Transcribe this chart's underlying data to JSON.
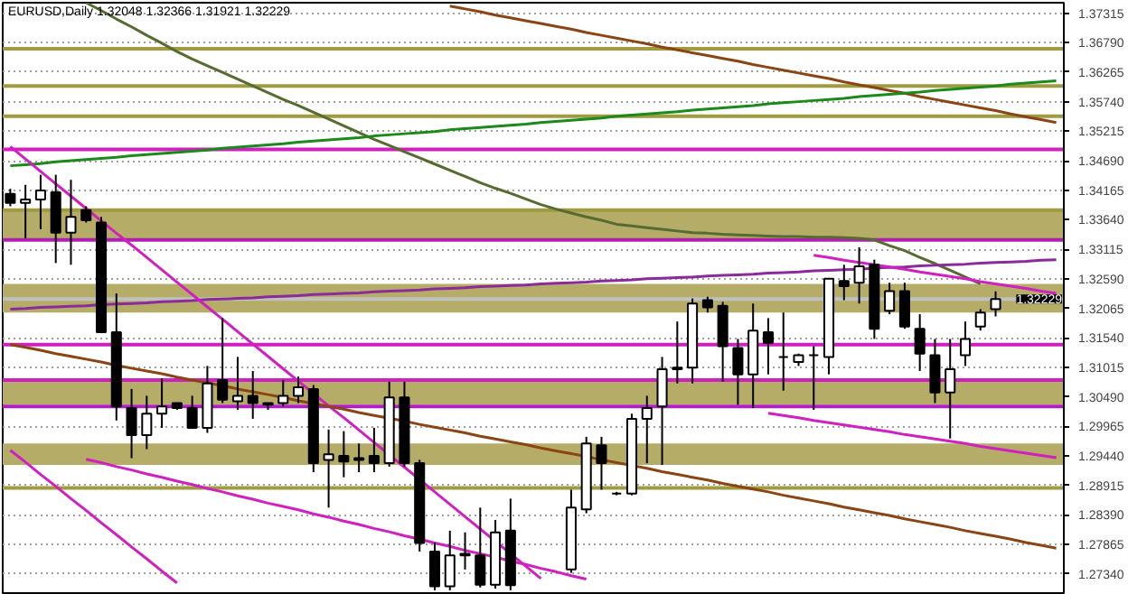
{
  "chart_data": {
    "type": "candlestick",
    "title": "EURUSD,Daily  1.32048 1.32366 1.31921 1.32229",
    "categories": [
      null,
      null,
      null,
      null,
      null,
      null,
      null,
      null,
      null,
      null,
      null,
      null,
      null,
      null,
      null,
      null,
      null,
      null,
      null,
      null,
      null,
      null,
      null,
      null,
      null,
      null,
      null,
      null,
      null,
      null,
      null,
      null,
      null,
      null,
      null,
      null,
      null,
      null,
      null,
      null,
      null,
      null,
      null,
      null,
      null,
      null,
      null,
      null,
      null,
      null,
      null,
      null,
      null,
      null,
      null,
      null,
      null,
      null,
      null,
      null,
      null,
      null,
      null,
      null,
      null,
      null,
      null,
      null,
      null,
      null
    ],
    "ohlc": [
      [
        1.341,
        1.3419,
        1.3388,
        1.3394
      ],
      [
        1.3394,
        1.3426,
        1.3331,
        1.34
      ],
      [
        1.34,
        1.3444,
        1.3347,
        1.3416
      ],
      [
        1.3413,
        1.3444,
        1.3287,
        1.3341
      ],
      [
        1.3341,
        1.3435,
        1.3284,
        1.3369
      ],
      [
        1.3381,
        1.3388,
        1.3359,
        1.3363
      ],
      [
        1.3359,
        1.3369,
        1.3164,
        1.3164
      ],
      [
        1.3164,
        1.3233,
        1.3007,
        1.3032
      ],
      [
        1.3029,
        1.3063,
        1.294,
        1.2981
      ],
      [
        1.2981,
        1.3051,
        1.2956,
        1.3019
      ],
      [
        1.3019,
        1.3082,
        1.2994,
        1.3032
      ],
      [
        1.3038,
        1.3038,
        1.3026,
        1.3029
      ],
      [
        1.3029,
        1.3051,
        1.2994,
        1.2994
      ],
      [
        1.2994,
        1.3104,
        1.2985,
        1.3073
      ],
      [
        1.3079,
        1.3189,
        1.3038,
        1.3044
      ],
      [
        1.3041,
        1.312,
        1.3026,
        1.3051
      ],
      [
        1.3051,
        1.3095,
        1.301,
        1.3038
      ],
      [
        1.3038,
        1.3038,
        1.3026,
        1.3035
      ],
      [
        1.3038,
        1.3079,
        1.3032,
        1.3051
      ],
      [
        1.3051,
        1.3085,
        1.3038,
        1.3066
      ],
      [
        1.3063,
        1.307,
        1.2915,
        1.2931
      ],
      [
        1.2937,
        1.2991,
        1.2852,
        1.2947
      ],
      [
        1.2944,
        1.2988,
        1.2906,
        1.2934
      ],
      [
        1.2937,
        1.2966,
        1.2915,
        1.294
      ],
      [
        1.2944,
        1.2994,
        1.2915,
        1.2931
      ],
      [
        1.2931,
        1.3076,
        1.2925,
        1.3048
      ],
      [
        1.3048,
        1.3076,
        1.2925,
        1.2931
      ],
      [
        1.2931,
        1.2937,
        1.2774,
        1.2789
      ],
      [
        1.2774,
        1.279,
        1.2705,
        1.2712
      ],
      [
        1.2712,
        1.2811,
        1.2705,
        1.2767
      ],
      [
        1.2767,
        1.2808,
        1.2742,
        1.277
      ],
      [
        1.2767,
        1.2852,
        1.271,
        1.2715
      ],
      [
        1.2715,
        1.283,
        1.2708,
        1.2808
      ],
      [
        1.2811,
        1.2868,
        1.2705,
        1.2714
      ],
      null,
      null,
      null,
      [
        1.2742,
        1.2884,
        1.2736,
        1.2852
      ],
      [
        1.2849,
        1.2978,
        1.2842,
        1.2966
      ],
      [
        1.2963,
        1.2978,
        1.2884,
        1.2931
      ],
      [
        1.2877,
        1.288,
        1.2874,
        1.2877
      ],
      [
        1.2877,
        1.3019,
        1.2874,
        1.301
      ],
      [
        1.301,
        1.3051,
        1.2931,
        1.3029
      ],
      [
        1.3032,
        1.312,
        1.2928,
        1.3098
      ],
      [
        1.3098,
        1.3183,
        1.3073,
        1.3101
      ],
      [
        1.3101,
        1.3224,
        1.3073,
        1.3215
      ],
      [
        1.3221,
        1.3227,
        1.3199,
        1.3208
      ],
      [
        1.3211,
        1.3218,
        1.3076,
        1.3139
      ],
      [
        1.3136,
        1.3152,
        1.3035,
        1.3089
      ],
      [
        1.3089,
        1.3215,
        1.3029,
        1.3167
      ],
      [
        1.3164,
        1.3189,
        1.3089,
        1.3145
      ],
      [
        1.312,
        1.3199,
        1.306,
        1.312
      ],
      [
        1.3111,
        1.3126,
        1.3104,
        1.3123
      ],
      [
        1.3123,
        1.3139,
        1.3026,
        1.3123
      ],
      [
        1.312,
        1.3259,
        1.3089,
        1.3259
      ],
      [
        1.3255,
        1.3284,
        1.3221,
        1.3246
      ],
      [
        1.3252,
        1.3315,
        1.3215,
        1.3281
      ],
      [
        1.3284,
        1.3293,
        1.3152,
        1.317
      ],
      [
        1.3202,
        1.3252,
        1.3196,
        1.3237
      ],
      [
        1.3237,
        1.3252,
        1.317,
        1.3174
      ],
      [
        1.317,
        1.3196,
        1.3095,
        1.3126
      ],
      [
        1.3123,
        1.3152,
        1.3038,
        1.3057
      ],
      [
        1.3057,
        1.3152,
        1.2975,
        1.3098
      ],
      [
        1.3123,
        1.3183,
        1.3104,
        1.3152
      ],
      [
        1.3174,
        1.3205,
        1.3167,
        1.3199
      ],
      [
        1.32048,
        1.32366,
        1.31921,
        1.32229
      ],
      null,
      null,
      null,
      null
    ],
    "series": [
      {
        "type": "line",
        "color": "#556b2f",
        "values": [
          null,
          null,
          null,
          null,
          null,
          1.375,
          1.3736,
          1.3721,
          1.3707,
          1.3692,
          1.3678,
          1.3663,
          1.365,
          1.3638,
          1.3626,
          1.3614,
          1.3602,
          1.359,
          1.3578,
          1.3567,
          1.3555,
          1.3543,
          1.3531,
          1.3519,
          1.3507,
          1.3496,
          1.3485,
          1.3474,
          1.3463,
          1.3452,
          1.3441,
          1.343,
          1.342,
          1.3411,
          1.3401,
          1.3391,
          1.3383,
          1.3376,
          1.3369,
          1.3363,
          1.3356,
          1.3353,
          1.335,
          1.3347,
          1.3344,
          1.3341,
          1.334,
          1.3338,
          1.3337,
          1.3336,
          1.3335,
          1.3334,
          1.3334,
          1.3333,
          1.3333,
          1.3332,
          1.3331,
          1.3328,
          1.3318,
          1.3309,
          1.3297,
          1.3286,
          1.3274,
          1.3262,
          1.325,
          null,
          null,
          null,
          null,
          null
        ]
      },
      {
        "type": "line",
        "color": "#8b4513",
        "values": [
          null,
          null,
          null,
          null,
          null,
          null,
          null,
          null,
          null,
          null,
          null,
          null,
          null,
          null,
          null,
          null,
          null,
          null,
          null,
          null,
          null,
          null,
          null,
          null,
          null,
          null,
          null,
          null,
          null,
          1.3744,
          1.3739,
          1.3734,
          1.3728,
          1.3723,
          1.3718,
          1.3713,
          1.3708,
          1.3703,
          1.3697,
          1.3692,
          1.3687,
          1.3682,
          1.3677,
          1.3671,
          1.3666,
          1.3661,
          1.3656,
          1.3651,
          1.3646,
          1.364,
          1.3635,
          1.363,
          1.3625,
          1.362,
          1.3615,
          1.3609,
          1.3604,
          1.3599,
          1.3594,
          1.3589,
          1.3583,
          1.3578,
          1.3573,
          1.3568,
          1.3563,
          1.3558,
          1.3552,
          1.3547,
          1.3542,
          1.3537
        ]
      },
      {
        "type": "line",
        "color": "#1a8a1a",
        "values": [
          1.346,
          1.3462,
          1.3464,
          1.3467,
          1.3469,
          1.3471,
          1.3473,
          1.3475,
          1.3478,
          1.348,
          1.3482,
          1.3484,
          1.3486,
          1.3488,
          1.3491,
          1.3493,
          1.3495,
          1.3497,
          1.3499,
          1.3502,
          1.3504,
          1.3506,
          1.3508,
          1.351,
          1.3513,
          1.3515,
          1.3517,
          1.3519,
          1.3521,
          1.3524,
          1.3526,
          1.3528,
          1.353,
          1.3532,
          1.3534,
          1.3537,
          1.3539,
          1.3541,
          1.3543,
          1.3545,
          1.3548,
          1.355,
          1.3552,
          1.3554,
          1.3556,
          1.3559,
          1.3561,
          1.3563,
          1.3565,
          1.3567,
          1.357,
          1.3572,
          1.3574,
          1.3576,
          1.3578,
          1.358,
          1.3583,
          1.3585,
          1.3587,
          1.3589,
          1.3591,
          1.3594,
          1.3596,
          1.3598,
          1.36,
          1.3602,
          1.3605,
          1.3607,
          1.3609,
          1.3611
        ]
      },
      {
        "type": "line",
        "color": "#8b2a9b",
        "values": [
          1.3205,
          1.3206,
          1.3208,
          1.3209,
          1.321,
          1.3211,
          1.3213,
          1.3214,
          1.3215,
          1.3216,
          1.3218,
          1.3219,
          1.322,
          1.3222,
          1.3223,
          1.3224,
          1.3225,
          1.3227,
          1.3228,
          1.3229,
          1.3231,
          1.3232,
          1.3233,
          1.3234,
          1.3236,
          1.3237,
          1.3238,
          1.3239,
          1.3241,
          1.3242,
          1.3243,
          1.3245,
          1.3246,
          1.3247,
          1.3248,
          1.325,
          1.3251,
          1.3252,
          1.3253,
          1.3255,
          1.3256,
          1.3257,
          1.3259,
          1.326,
          1.3261,
          1.3262,
          1.3264,
          1.3265,
          1.3266,
          1.3267,
          1.3269,
          1.327,
          1.3271,
          1.3273,
          1.3274,
          1.3275,
          1.3276,
          1.3278,
          1.3279,
          1.328,
          1.3282,
          1.3283,
          1.3284,
          1.3285,
          1.3287,
          1.3288,
          1.3289,
          1.329,
          1.3292,
          1.3293
        ]
      },
      {
        "type": "line",
        "color": "#d020c0",
        "values": [
          1.3494,
          1.3472,
          1.345,
          1.3428,
          1.3406,
          1.3384,
          1.3362,
          1.334,
          1.3319,
          1.3297,
          1.3275,
          1.3253,
          1.3231,
          1.3209,
          1.3187,
          1.3165,
          1.3143,
          1.3121,
          1.3099,
          1.3077,
          1.3055,
          1.3033,
          1.3012,
          1.299,
          1.2968,
          1.2946,
          1.2924,
          1.2902,
          1.288,
          1.2858,
          1.2836,
          1.2814,
          1.2792,
          1.277,
          1.2748,
          1.2726,
          null,
          null,
          null,
          null,
          null,
          null,
          null,
          null,
          null,
          null,
          null,
          null,
          null,
          null,
          null,
          null,
          null,
          null,
          null,
          null,
          null,
          null,
          null,
          null,
          null,
          null,
          null,
          null,
          null,
          null,
          null,
          null,
          null,
          null
        ]
      },
      {
        "type": "line",
        "color": "#d020c0",
        "values": [
          1.2954,
          1.2933,
          1.2911,
          1.289,
          1.2868,
          1.2847,
          1.2825,
          1.2804,
          1.2782,
          1.2761,
          1.2739,
          1.2718,
          null,
          null,
          null,
          null,
          null,
          null,
          null,
          null,
          null,
          null,
          null,
          null,
          null,
          null,
          null,
          null,
          null,
          null,
          null,
          null,
          null,
          null,
          null,
          null,
          null,
          null,
          null,
          null,
          null,
          null,
          null,
          null,
          null,
          null,
          null,
          null,
          null,
          null,
          null,
          null,
          null,
          null,
          null,
          null,
          null,
          null,
          null,
          null,
          null,
          null,
          null,
          null,
          null,
          null,
          null,
          null,
          null,
          null
        ]
      },
      {
        "type": "line",
        "color": "#d020c0",
        "values": [
          null,
          null,
          null,
          null,
          null,
          1.2938,
          1.2932,
          1.2925,
          1.2919,
          1.2912,
          1.2906,
          1.2899,
          1.2893,
          1.2886,
          1.288,
          1.2873,
          1.2867,
          1.286,
          1.2854,
          1.2848,
          1.2841,
          1.2835,
          1.2828,
          1.2822,
          1.2815,
          1.2809,
          1.2802,
          1.2796,
          1.2789,
          1.2783,
          1.2776,
          1.277,
          1.2764,
          1.2757,
          1.2751,
          1.2744,
          1.2738,
          1.2731,
          1.2725,
          null,
          null,
          null,
          null,
          null,
          null,
          null,
          null,
          null,
          null,
          null,
          null,
          null,
          null,
          null,
          null,
          null,
          null,
          null,
          null,
          null,
          null,
          null,
          null,
          null,
          null,
          null,
          null,
          null,
          null,
          null
        ]
      },
      {
        "type": "line",
        "color": "#d020c0",
        "values": [
          null,
          null,
          null,
          null,
          null,
          null,
          null,
          null,
          null,
          null,
          null,
          null,
          null,
          null,
          null,
          null,
          null,
          null,
          null,
          null,
          null,
          null,
          null,
          null,
          null,
          null,
          null,
          null,
          null,
          null,
          null,
          null,
          null,
          null,
          null,
          null,
          null,
          null,
          null,
          null,
          null,
          null,
          null,
          null,
          null,
          null,
          null,
          null,
          null,
          null,
          null,
          null,
          null,
          1.3301,
          1.3297,
          1.3292,
          1.3288,
          1.3284,
          1.328,
          1.3276,
          1.3271,
          1.3267,
          1.3263,
          1.3259,
          1.3254,
          1.325,
          1.3246,
          1.3242,
          1.3237,
          1.3233
        ]
      },
      {
        "type": "line",
        "color": "#d020c0",
        "values": [
          null,
          null,
          null,
          null,
          null,
          null,
          null,
          null,
          null,
          null,
          null,
          null,
          null,
          null,
          null,
          null,
          null,
          null,
          null,
          null,
          null,
          null,
          null,
          null,
          null,
          null,
          null,
          null,
          null,
          null,
          null,
          null,
          null,
          null,
          null,
          null,
          null,
          null,
          null,
          null,
          null,
          null,
          null,
          null,
          null,
          null,
          null,
          null,
          null,
          null,
          1.302,
          1.3016,
          1.3012,
          1.3007,
          1.3003,
          1.2999,
          1.2995,
          1.2991,
          1.2987,
          1.2982,
          1.2978,
          1.2974,
          1.297,
          1.2966,
          1.2961,
          1.2957,
          1.2953,
          1.2949,
          1.2945,
          1.2941
        ]
      },
      {
        "type": "line",
        "color": "#8b4513",
        "values": [
          1.3142,
          1.3137,
          1.3132,
          1.3126,
          1.3121,
          1.3116,
          1.3111,
          1.3105,
          1.31,
          1.3095,
          1.309,
          1.3084,
          1.3079,
          1.3074,
          1.3069,
          1.3063,
          1.3058,
          1.3053,
          1.3048,
          1.3042,
          1.3037,
          1.3032,
          1.3027,
          1.3021,
          1.3016,
          1.3011,
          1.3006,
          1.3,
          1.2995,
          1.299,
          1.2985,
          1.2979,
          1.2974,
          1.2969,
          1.2964,
          1.2958,
          1.2953,
          1.2948,
          1.2943,
          1.2937,
          1.2932,
          1.2927,
          1.2922,
          1.2916,
          1.2911,
          1.2906,
          1.2901,
          1.2895,
          1.289,
          1.2885,
          1.288,
          1.2874,
          1.2869,
          1.2864,
          1.2859,
          1.2853,
          1.2848,
          1.2843,
          1.2838,
          1.2832,
          1.2827,
          1.2822,
          1.2817,
          1.2811,
          1.2806,
          1.2801,
          1.2796,
          1.279,
          1.2785,
          1.278
        ]
      }
    ],
    "ylim": [
      1.27,
      1.375
    ],
    "yticks": [
      {
        "value": 1.2734,
        "label": "1.27340"
      },
      {
        "value": 1.27865,
        "label": "1.27865"
      },
      {
        "value": 1.2839,
        "label": "1.28390"
      },
      {
        "value": 1.28915,
        "label": "1.28915"
      },
      {
        "value": 1.2944,
        "label": "1.29440"
      },
      {
        "value": 1.29965,
        "label": "1.29965"
      },
      {
        "value": 1.3049,
        "label": "1.30490"
      },
      {
        "value": 1.31015,
        "label": "1.31015"
      },
      {
        "value": 1.3154,
        "label": "1.31540"
      },
      {
        "value": 1.32065,
        "label": "1.32065"
      },
      {
        "value": 1.3259,
        "label": "1.32590"
      },
      {
        "value": 1.33115,
        "label": "1.33115"
      },
      {
        "value": 1.3364,
        "label": "1.33640"
      },
      {
        "value": 1.34165,
        "label": "1.34165"
      },
      {
        "value": 1.3469,
        "label": "1.34690"
      },
      {
        "value": 1.35215,
        "label": "1.35215"
      },
      {
        "value": 1.3574,
        "label": "1.35740"
      },
      {
        "value": 1.36265,
        "label": "1.36265"
      },
      {
        "value": 1.3679,
        "label": "1.36790"
      },
      {
        "value": 1.37315,
        "label": "1.37315"
      }
    ],
    "bands": [
      {
        "axis": "y",
        "from": 1.3331,
        "to": 1.3381,
        "color": "#b5ac68"
      },
      {
        "axis": "y",
        "from": 1.3199,
        "to": 1.325,
        "color": "#b5ac68"
      },
      {
        "axis": "y",
        "from": 1.3035,
        "to": 1.3079,
        "color": "#b5ac68"
      },
      {
        "axis": "y",
        "from": 1.2928,
        "to": 1.2966,
        "color": "#b5ac68"
      }
    ],
    "ref_lines": [
      {
        "axis": "y",
        "value": 1.3668,
        "color": "#a09a40"
      },
      {
        "axis": "y",
        "value": 1.3602,
        "color": "#a09a40"
      },
      {
        "axis": "y",
        "value": 1.3548,
        "color": "#a09a40"
      },
      {
        "axis": "y",
        "value": 1.3381,
        "color": "#a09a40"
      },
      {
        "axis": "y",
        "value": 1.2887,
        "color": "#a09a40"
      },
      {
        "axis": "y",
        "value": 1.3489,
        "color": "#d020c0"
      },
      {
        "axis": "y",
        "value": 1.3328,
        "color": "#b020b0"
      },
      {
        "axis": "y",
        "value": 1.3142,
        "color": "#d020c0"
      },
      {
        "axis": "y",
        "value": 1.3079,
        "color": "#d020c0"
      },
      {
        "axis": "y",
        "value": 1.3032,
        "color": "#b020c0"
      },
      {
        "axis": "y",
        "value": 1.32229,
        "label": "1.32229",
        "color": "#c0c0c0"
      }
    ],
    "grid": "y"
  }
}
